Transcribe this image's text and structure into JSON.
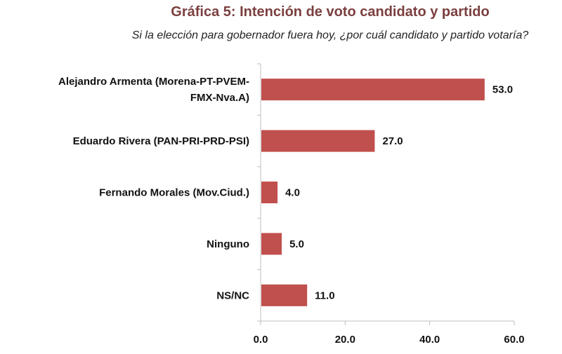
{
  "chart_data": {
    "type": "bar",
    "orientation": "horizontal",
    "title": "Gráfica 5: Intención de voto candidato y partido",
    "subtitle": "Si  la elección para gobernador fuera hoy, ¿por cuál candidato y partido votaría?",
    "categories": [
      "Alejandro Armenta (Morena-PT-PVEM-FMX-Nva.A)",
      "Eduardo Rivera (PAN-PRI-PRD-PSI)",
      "Fernando Morales (Mov.Ciud.)",
      "Ninguno",
      "NS/NC"
    ],
    "category_lines": [
      [
        "Alejandro Armenta (Morena-PT-PVEM-",
        "FMX-Nva.A)"
      ],
      [
        "Eduardo Rivera (PAN-PRI-PRD-PSI)"
      ],
      [
        "Fernando Morales (Mov.Ciud.)"
      ],
      [
        "Ninguno"
      ],
      [
        "NS/NC"
      ]
    ],
    "values": [
      53.0,
      27.0,
      4.0,
      5.0,
      11.0
    ],
    "value_labels": [
      "53.0",
      "27.0",
      "4.0",
      "5.0",
      "11.0"
    ],
    "xlim": [
      0,
      60
    ],
    "xticks": [
      "0.0",
      "20.0",
      "40.0",
      "60.0"
    ],
    "bar_color": "#c0504d",
    "title_color": "#7b3f3f",
    "grid": false
  }
}
